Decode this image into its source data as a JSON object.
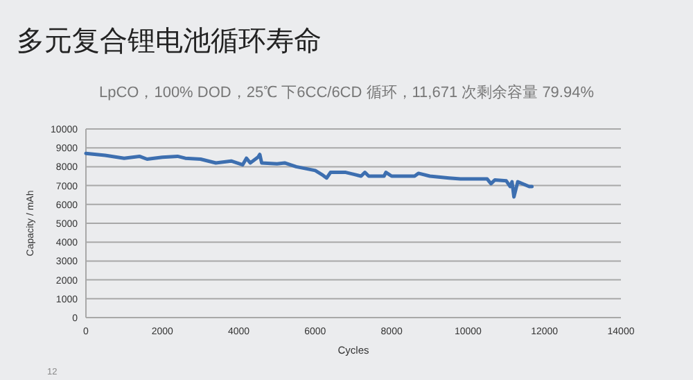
{
  "chart_data": {
    "type": "line",
    "title": "多元复合锂电池循环寿命",
    "subtitle": "LpCO，100% DOD，25℃ 下6CC/6CD 循环，11,671 次剩余容量 79.94%",
    "xlabel": "Cycles",
    "ylabel": "Capacity / mAh",
    "annotations": [
      "12"
    ],
    "series": [
      {
        "color": "#3d6fb0",
        "x": [
          0,
          500,
          1000,
          1400,
          1600,
          2000,
          2400,
          2600,
          3000,
          3400,
          3800,
          4100,
          4200,
          4300,
          4500,
          4550,
          4600,
          5000,
          5200,
          5500,
          6000,
          6200,
          6300,
          6400,
          6800,
          7200,
          7300,
          7400,
          7800,
          7850,
          8000,
          8600,
          8700,
          9000,
          9500,
          9800,
          10500,
          10600,
          10700,
          11000,
          11100,
          11150,
          11200,
          11300,
          11600,
          11671
        ],
        "values": [
          8700,
          8600,
          8450,
          8550,
          8400,
          8500,
          8550,
          8450,
          8400,
          8200,
          8300,
          8100,
          8450,
          8200,
          8500,
          8650,
          8200,
          8150,
          8200,
          8000,
          7800,
          7550,
          7400,
          7700,
          7700,
          7500,
          7700,
          7500,
          7500,
          7700,
          7500,
          7500,
          7650,
          7500,
          7400,
          7350,
          7350,
          7100,
          7300,
          7250,
          6950,
          7200,
          6400,
          7200,
          6950,
          6950
        ]
      }
    ],
    "xlim": [
      0,
      14000
    ],
    "xticks": [
      0,
      2000,
      4000,
      6000,
      8000,
      10000,
      12000,
      14000
    ],
    "ylim": [
      0,
      10000
    ],
    "yticks": [
      0,
      1000,
      2000,
      3000,
      4000,
      5000,
      6000,
      7000,
      8000,
      9000,
      10000
    ],
    "grid": "y"
  }
}
